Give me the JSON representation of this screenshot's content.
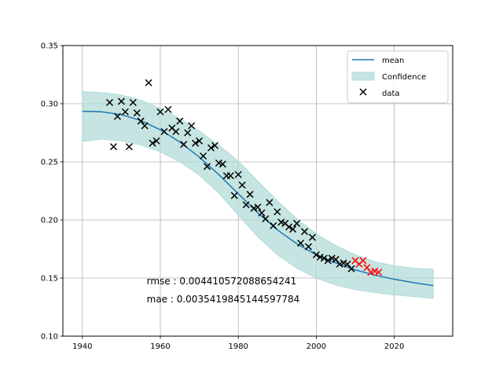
{
  "chart_data": {
    "type": "line",
    "title": "",
    "xlabel": "",
    "ylabel": "",
    "xlim": [
      1935,
      2035
    ],
    "ylim": [
      0.1,
      0.35
    ],
    "xticks": [
      1940,
      1960,
      1980,
      2000,
      2020
    ],
    "xtick_labels": [
      "1940",
      "1960",
      "1980",
      "2000",
      "2020"
    ],
    "yticks": [
      0.1,
      0.15,
      0.2,
      0.25,
      0.3,
      0.35
    ],
    "ytick_labels": [
      "0.10",
      "0.15",
      "0.20",
      "0.25",
      "0.30",
      "0.35"
    ],
    "grid": true,
    "legend_position": "top-right",
    "legend": [
      {
        "label": "mean",
        "kind": "line",
        "color": "#1f77b4"
      },
      {
        "label": "Confidence",
        "kind": "patch",
        "color": "#b3dcd8"
      },
      {
        "label": "data",
        "kind": "marker",
        "color": "#000000"
      }
    ],
    "series": [
      {
        "name": "mean",
        "kind": "line",
        "color": "#1f77b4",
        "x": [
          1940,
          1945,
          1950,
          1955,
          1960,
          1965,
          1970,
          1975,
          1980,
          1985,
          1990,
          1995,
          2000,
          2005,
          2010,
          2015,
          2020,
          2025,
          2030
        ],
        "y": [
          0.2935,
          0.293,
          0.2905,
          0.2855,
          0.2775,
          0.267,
          0.254,
          0.239,
          0.2225,
          0.206,
          0.1915,
          0.1795,
          0.17,
          0.163,
          0.157,
          0.1525,
          0.149,
          0.146,
          0.1435
        ]
      },
      {
        "name": "Confidence",
        "kind": "band",
        "color": "#b3dcd8",
        "x": [
          1940,
          1945,
          1950,
          1955,
          1960,
          1965,
          1970,
          1975,
          1980,
          1985,
          1990,
          1995,
          2000,
          2005,
          2010,
          2015,
          2020,
          2025,
          2030
        ],
        "upper": [
          0.3105,
          0.3095,
          0.3075,
          0.303,
          0.296,
          0.287,
          0.2765,
          0.2645,
          0.2505,
          0.2335,
          0.2165,
          0.201,
          0.188,
          0.178,
          0.17,
          0.164,
          0.1605,
          0.1585,
          0.1575
        ],
        "lower": [
          0.2675,
          0.2695,
          0.268,
          0.2645,
          0.2585,
          0.25,
          0.2385,
          0.223,
          0.204,
          0.1855,
          0.17,
          0.1585,
          0.15,
          0.144,
          0.14,
          0.1375,
          0.1355,
          0.134,
          0.1325
        ]
      },
      {
        "name": "data",
        "kind": "scatter",
        "color": "#000000",
        "x": [
          1947,
          1948,
          1949,
          1950,
          1951,
          1952,
          1953,
          1954,
          1955,
          1956,
          1957,
          1958,
          1959,
          1960,
          1961,
          1962,
          1963,
          1964,
          1965,
          1966,
          1967,
          1968,
          1969,
          1970,
          1971,
          1972,
          1973,
          1974,
          1975,
          1976,
          1977,
          1978,
          1979,
          1980,
          1981,
          1982,
          1983,
          1984,
          1985,
          1986,
          1987,
          1988,
          1989,
          1990,
          1991,
          1992,
          1993,
          1994,
          1995,
          1996,
          1997,
          1998,
          1999,
          2000,
          2001,
          2002,
          2003,
          2004,
          2005,
          2006,
          2007,
          2008,
          2009
        ],
        "y": [
          0.301,
          0.263,
          0.289,
          0.302,
          0.293,
          0.263,
          0.301,
          0.292,
          0.285,
          0.281,
          0.318,
          0.266,
          0.268,
          0.293,
          0.276,
          0.295,
          0.279,
          0.276,
          0.285,
          0.265,
          0.275,
          0.281,
          0.266,
          0.268,
          0.255,
          0.246,
          0.262,
          0.264,
          0.249,
          0.248,
          0.238,
          0.238,
          0.221,
          0.239,
          0.23,
          0.213,
          0.222,
          0.21,
          0.211,
          0.206,
          0.201,
          0.215,
          0.195,
          0.207,
          0.198,
          0.197,
          0.194,
          0.192,
          0.197,
          0.18,
          0.19,
          0.177,
          0.185,
          0.17,
          0.168,
          0.167,
          0.165,
          0.167,
          0.166,
          0.162,
          0.163,
          0.162,
          0.158
        ]
      },
      {
        "name": "",
        "kind": "scatter",
        "color": "#ff0000",
        "x": [
          2010,
          2011,
          2012,
          2013,
          2014,
          2015,
          2016
        ],
        "y": [
          0.165,
          0.162,
          0.165,
          0.159,
          0.155,
          0.156,
          0.155
        ]
      }
    ],
    "annotations": [
      {
        "text": "rmse : 0.004410572088654241",
        "x": 1956.5,
        "y": 0.1445
      },
      {
        "text": "mae : 0.0035419845144597784",
        "x": 1956.5,
        "y": 0.129
      }
    ]
  }
}
